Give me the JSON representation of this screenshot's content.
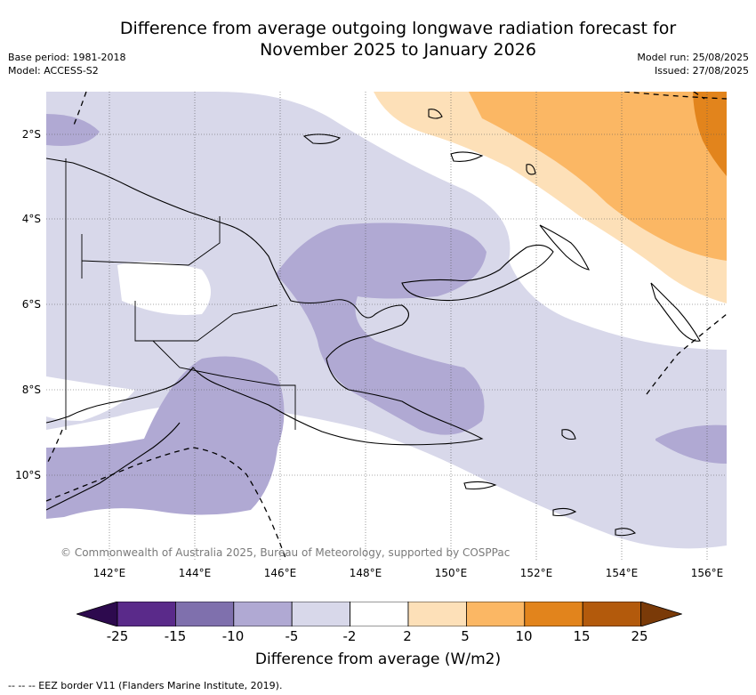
{
  "title_line1": "Difference from average outgoing longwave radiation forecast for",
  "title_line2": "November 2025 to January 2026",
  "base_period": "Base period: 1981-2018",
  "model": "Model: ACCESS-S2",
  "model_run": "Model run: 25/08/2025",
  "issued": "Issued: 27/08/2025",
  "copyright": "© Commonwealth of Australia 2025, Bureau of Meteorology, supported by COSPPac",
  "lat_labels": [
    "2°S",
    "4°S",
    "6°S",
    "8°S",
    "10°S"
  ],
  "lon_labels": [
    "142°E",
    "144°E",
    "146°E",
    "148°E",
    "150°E",
    "152°E",
    "154°E",
    "156°E"
  ],
  "colorbar": {
    "title": "Difference from average (W/m2)",
    "ticks": [
      "-25",
      "-15",
      "-10",
      "-5",
      "-2",
      "2",
      "5",
      "10",
      "15",
      "25"
    ],
    "colors": [
      "#2d0a4e",
      "#5a2a8a",
      "#7f70ad",
      "#b0a9d3",
      "#d8d8ea",
      "#ffffff",
      "#fde0b8",
      "#fbb764",
      "#e2841c",
      "#b35a0c",
      "#7a3a08"
    ]
  },
  "eez_note": "-- -- -- EEZ border V11 (Flanders Marine Institute, 2019)."
}
